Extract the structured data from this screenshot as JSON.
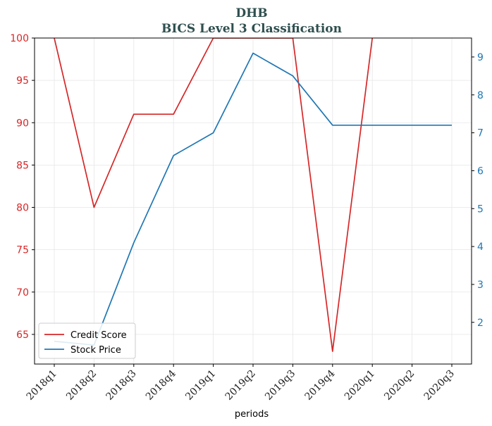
{
  "chart_data": {
    "type": "line",
    "title": "DHB",
    "subtitle": "BICS Level 3 Classification",
    "xlabel": "periods",
    "categories": [
      "2018q1",
      "2018q2",
      "2018q3",
      "2018q4",
      "2019q1",
      "2019q2",
      "2019q3",
      "2019q4",
      "2020q1",
      "2020q2",
      "2020q3"
    ],
    "left_axis": {
      "ylim": [
        61.5,
        100
      ],
      "ticks": [
        65,
        70,
        75,
        80,
        85,
        90,
        95,
        100
      ],
      "color": "#d62728"
    },
    "right_axis": {
      "ylim": [
        0.9,
        9.5
      ],
      "ticks": [
        2,
        3,
        4,
        5,
        6,
        7,
        8,
        9
      ],
      "color": "#1f77b4"
    },
    "series": [
      {
        "name": "Credit Score",
        "axis": "left",
        "color": "#d62728",
        "values": [
          100,
          80,
          91,
          91,
          100,
          100,
          100,
          63,
          100,
          null,
          null
        ]
      },
      {
        "name": "Stock Price",
        "axis": "right",
        "color": "#1f77b4",
        "values": [
          1.5,
          1.4,
          4.1,
          6.4,
          7.0,
          9.1,
          8.5,
          7.2,
          7.2,
          7.2,
          7.2
        ]
      }
    ],
    "grid": true,
    "legend_position": "lower-left"
  }
}
